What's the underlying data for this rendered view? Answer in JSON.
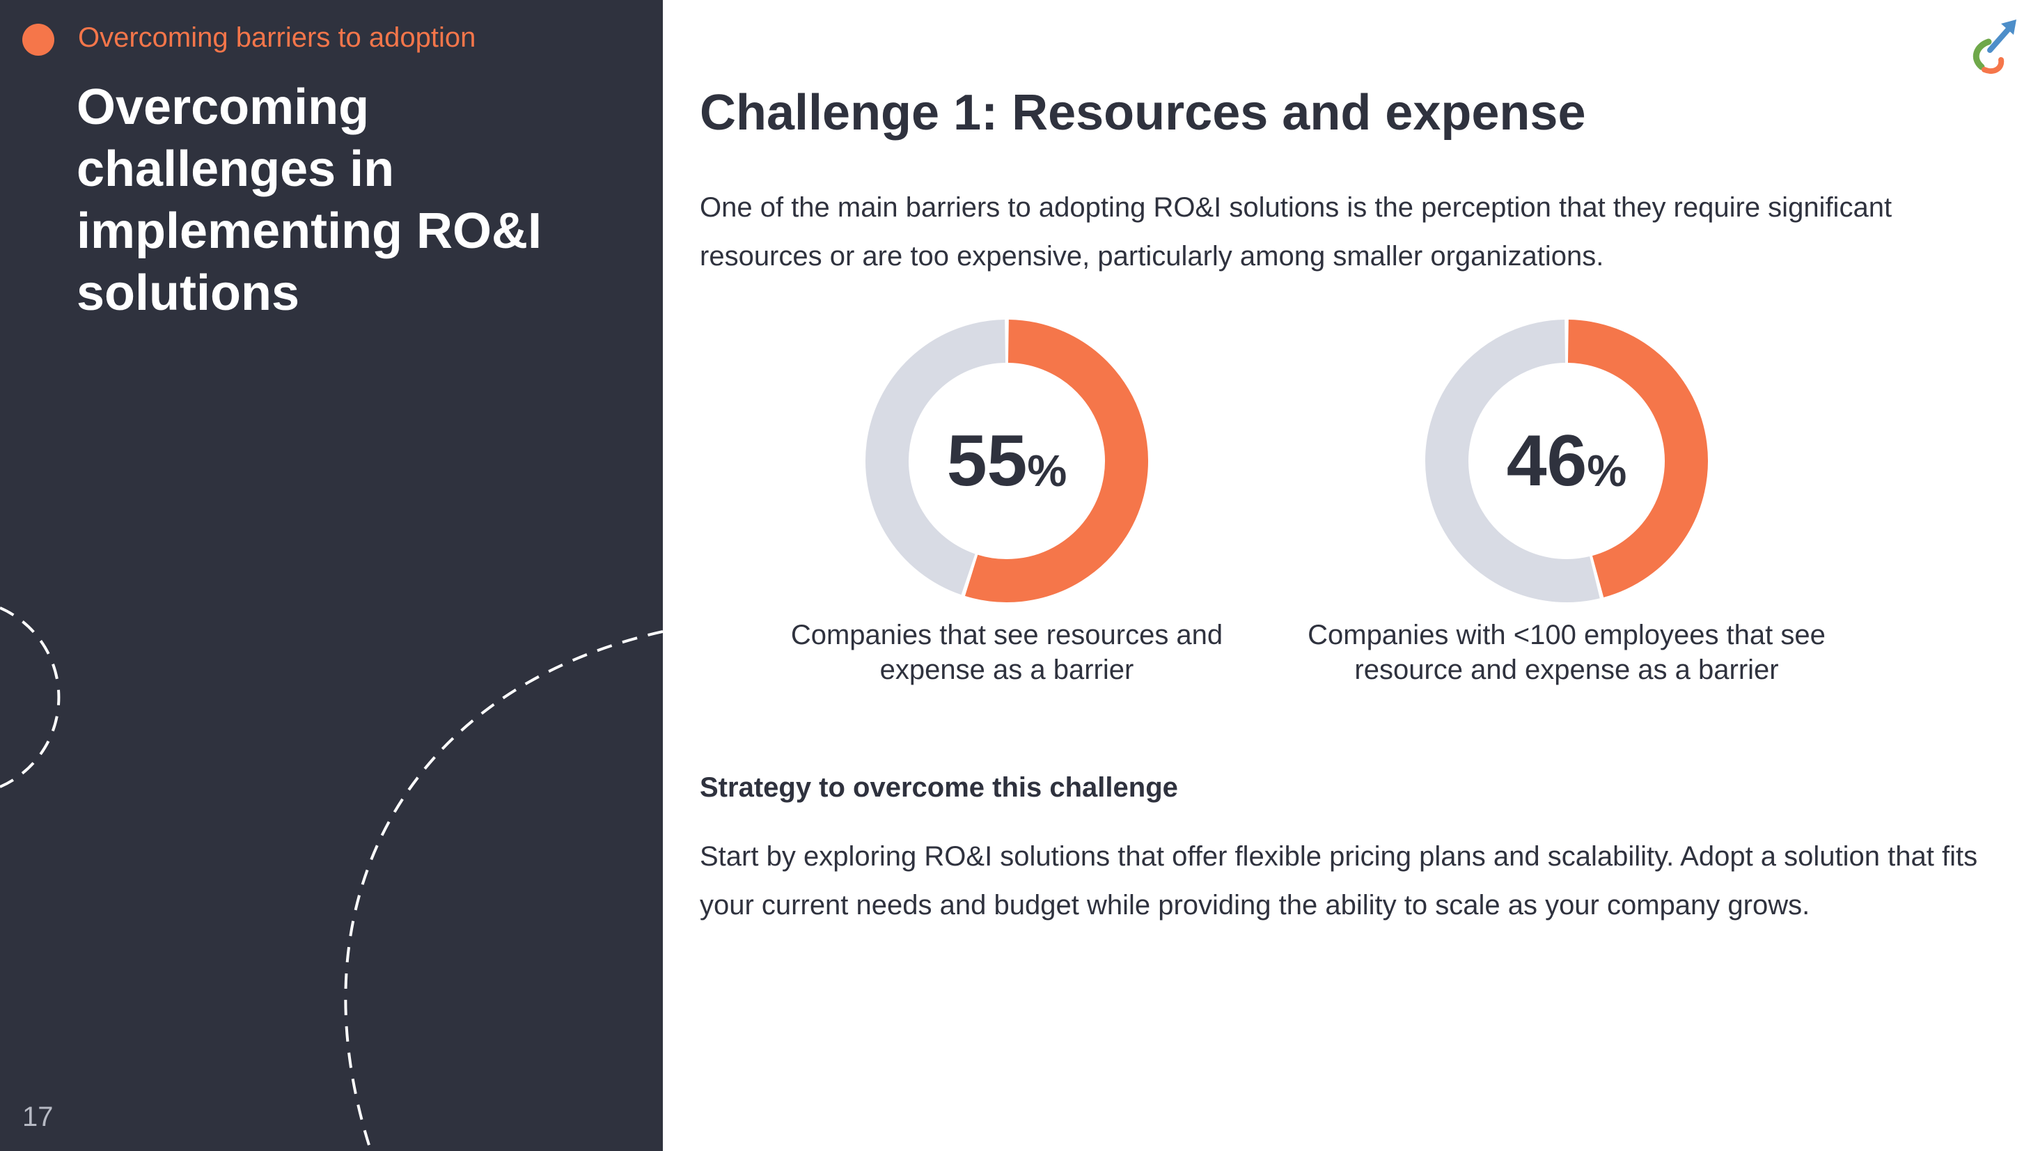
{
  "sidebar": {
    "section_label": "Overcoming barriers to adoption",
    "title": "Overcoming challenges in implementing RO&I solutions",
    "page_number": "17"
  },
  "main": {
    "title": "Challenge 1: Resources and expense",
    "intro": "One of the main barriers to adopting RO&I solutions is the perception that they require significant resources or are too expensive, particularly among smaller organizations.",
    "strategy_heading": "Strategy to overcome this challenge",
    "strategy_body": "Start by exploring RO&I solutions that offer flexible pricing plans and scalability. Adopt a solution that fits your current needs and budget while providing the ability to scale as your company grows."
  },
  "stats": [
    {
      "value": "55",
      "unit": "%",
      "caption": "Companies that see resources and expense as a barrier"
    },
    {
      "value": "46",
      "unit": "%",
      "caption": "Companies with <100 employees that see resource and expense as a barrier"
    }
  ],
  "chart_data": [
    {
      "type": "pie",
      "categories": [
        "Companies that see resources and expense as a barrier",
        ""
      ],
      "values": [
        55,
        45
      ],
      "colors": [
        "#f5764a",
        "#d8dbe4"
      ]
    },
    {
      "type": "pie",
      "categories": [
        "Companies with <100 employees that see resource and expense as a barrier",
        ""
      ],
      "values": [
        46,
        54
      ],
      "colors": [
        "#f5764a",
        "#d8dbe4"
      ]
    }
  ],
  "colors": {
    "sidebar_bg": "#2f323e",
    "accent": "#f5764a",
    "track": "#d8dbe4",
    "text": "#2f323e"
  },
  "icons": {
    "logo": "arrow-swirl-logo-icon"
  }
}
